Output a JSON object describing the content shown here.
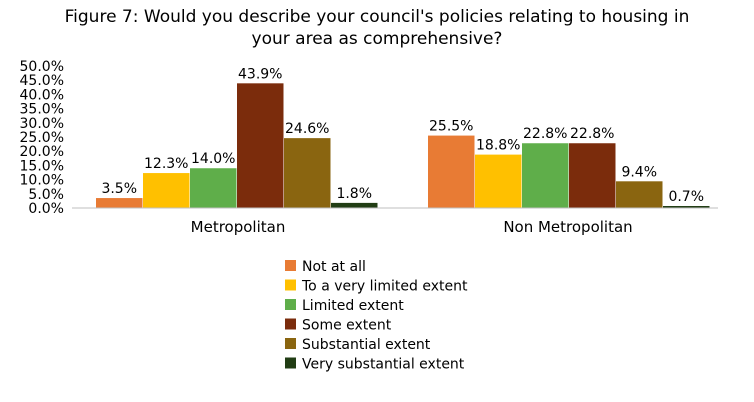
{
  "chart_data": {
    "type": "bar",
    "title_lines": [
      "Figure 7: Would you describe your council's policies relating to housing in",
      "your area as comprehensive?"
    ],
    "categories": [
      "Metropolitan",
      "Non Metropolitan"
    ],
    "ylim": [
      0,
      50
    ],
    "y_ticks": [
      "0.0%",
      "5.0%",
      "10.0%",
      "15.0%",
      "20.0%",
      "25.0%",
      "30.0%",
      "35.0%",
      "40.0%",
      "45.0%",
      "50.0%"
    ],
    "grid": false,
    "legend_position": "bottom",
    "series": [
      {
        "name": "Not at all",
        "color": "#e87b34",
        "values": [
          3.5,
          25.5
        ],
        "labels": [
          "3.5%",
          "25.5%"
        ]
      },
      {
        "name": "To a very limited extent",
        "color": "#ffc000",
        "values": [
          12.3,
          18.8
        ],
        "labels": [
          "12.3%",
          "18.8%"
        ]
      },
      {
        "name": "Limited extent",
        "color": "#5fae4a",
        "values": [
          14.0,
          22.8
        ],
        "labels": [
          "14.0%",
          "22.8%"
        ]
      },
      {
        "name": "Some extent",
        "color": "#7b2c0c",
        "values": [
          43.9,
          22.8
        ],
        "labels": [
          "43.9%",
          "22.8%"
        ]
      },
      {
        "name": "Substantial extent",
        "color": "#8a6510",
        "values": [
          24.6,
          9.4
        ],
        "labels": [
          "24.6%",
          "9.4%"
        ]
      },
      {
        "name": "Very substantial extent",
        "color": "#213d14",
        "values": [
          1.8,
          0.7
        ],
        "labels": [
          "1.8%",
          "0.7%"
        ]
      }
    ]
  }
}
